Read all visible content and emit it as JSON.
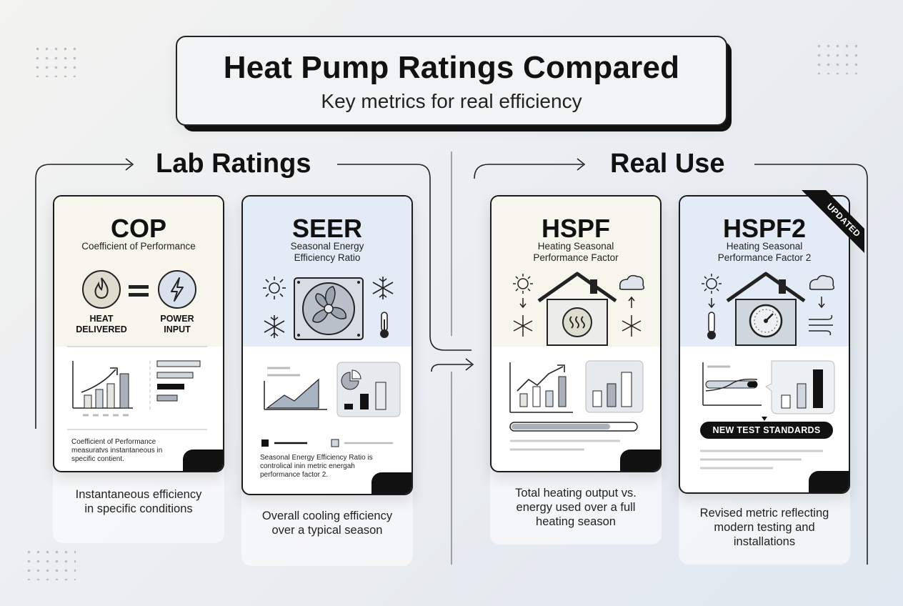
{
  "header": {
    "title": "Heat Pump Ratings Compared",
    "subtitle": "Key metrics for real efficiency"
  },
  "sections": {
    "lab": "Lab Ratings",
    "real": "Real Use"
  },
  "cards": {
    "cop": {
      "title": "COP",
      "subtitle": "Coefficient of Performance",
      "left_label_1": "HEAT",
      "left_label_2": "DELIVERED",
      "right_label_1": "POWER",
      "right_label_2": "INPUT",
      "small_text_1": "Coefficient of Performance",
      "small_text_2": "measuratvs  instantaneous in",
      "small_text_3": "specific contient.",
      "description_1": "Instantaneous efficiency",
      "description_2": "in specific conditions"
    },
    "seer": {
      "title": "SEER",
      "subtitle_1": "Seasonal Energy",
      "subtitle_2": "Efficiency Ratio",
      "small_text_1": "Seasonal Energy Efficiency Ratio is",
      "small_text_2": "controlical inin metric energah",
      "small_text_3": "performance factor 2.",
      "description_1": "Overall cooling efficiency",
      "description_2": "over a typical season"
    },
    "hspf": {
      "title": "HSPF",
      "subtitle_1": "Heating Seasonal",
      "subtitle_2": "Performance Factor",
      "description_1": "Total heating output vs.",
      "description_2": "energy used over a full",
      "description_3": "heating season"
    },
    "hspf2": {
      "title": "HSPF2",
      "subtitle_1": "Heating Seasonal",
      "subtitle_2": "Performance Factor 2",
      "badge": "UPDATED",
      "pill": "NEW TEST STANDARDS",
      "description_1": "Revised metric reflecting",
      "description_2": "modern testing and",
      "description_3": "installations"
    }
  },
  "icons": [
    "flame-icon",
    "lightning-icon",
    "sun-icon",
    "snowflake-icon",
    "thermometer-icon",
    "fan-icon",
    "house-icon",
    "heat-waves-icon",
    "cloud-icon",
    "gauge-icon",
    "wind-icon",
    "arrow-icon"
  ],
  "colors": {
    "cop_top": "#f7f6ec",
    "seer_top": "#e3ecf6",
    "hspf_top": "#f7f6ec",
    "hspf2_top": "#e3ecf6",
    "accent": "#111111",
    "chart_fill": "#a9b4c2"
  }
}
